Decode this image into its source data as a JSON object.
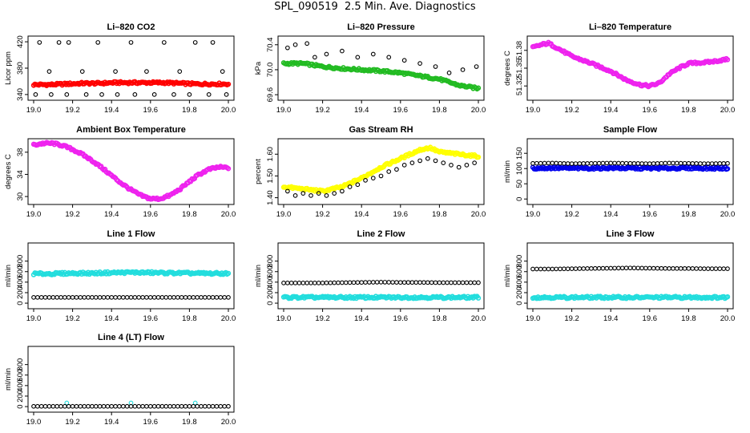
{
  "page_title": "SPL_090519  2.5 Min. Ave. Diagnostics",
  "chart_data": [
    {
      "id": "co2",
      "type": "scatter",
      "title": "Li–820 CO2",
      "xlabel": "",
      "ylabel": "Licor ppm",
      "xlim": [
        19.0,
        20.0
      ],
      "ylim": [
        335,
        425
      ],
      "xticks": [
        "19.0",
        "19.2",
        "19.4",
        "19.6",
        "19.8",
        "20.0"
      ],
      "yticks": [
        "340",
        "380",
        "420"
      ],
      "series": [
        {
          "name": "co2",
          "color": "#ff0000",
          "values": [
            355,
            355,
            356,
            357,
            357,
            358,
            358,
            358,
            358,
            357,
            356,
            356,
            356
          ]
        },
        {
          "name": "outliers",
          "color": "#000000",
          "x": [
            19.03,
            19.08,
            19.13,
            19.18,
            19.25,
            19.33,
            19.42,
            19.5,
            19.58,
            19.67,
            19.75,
            19.83,
            19.92,
            19.97
          ],
          "values": [
            419,
            375,
            419,
            419,
            375,
            419,
            375,
            419,
            375,
            419,
            375,
            419,
            419,
            375
          ]
        },
        {
          "name": "lows",
          "color": "#000000",
          "x": [
            19.01,
            19.09,
            19.17,
            19.27,
            19.35,
            19.43,
            19.52,
            19.62,
            19.72,
            19.8,
            19.9,
            19.99
          ],
          "values": [
            340,
            340,
            340,
            340,
            340,
            340,
            340,
            340,
            340,
            340,
            340,
            340
          ]
        }
      ]
    },
    {
      "id": "pressure",
      "type": "scatter",
      "title": "Li–820 Pressure",
      "xlabel": "",
      "ylabel": "kPa",
      "xlim": [
        19.0,
        20.0
      ],
      "ylim": [
        69.55,
        70.5
      ],
      "xticks": [
        "19.0",
        "19.2",
        "19.4",
        "19.6",
        "19.8",
        "20.0"
      ],
      "yticks": [
        "69.6",
        "70.0",
        "70.4"
      ],
      "series": [
        {
          "name": "pressure",
          "color": "#22bb22",
          "x": [
            19.0,
            19.1,
            19.2,
            19.3,
            19.4,
            19.5,
            19.6,
            19.7,
            19.8,
            19.9,
            20.0
          ],
          "values": [
            70.1,
            70.1,
            70.05,
            70.02,
            70.0,
            69.98,
            69.95,
            69.9,
            69.85,
            69.75,
            69.7
          ]
        },
        {
          "name": "outliers",
          "color": "#000000",
          "x": [
            19.02,
            19.06,
            19.12,
            19.16,
            19.22,
            19.3,
            19.38,
            19.46,
            19.54,
            19.62,
            19.7,
            19.78,
            19.85,
            19.92,
            19.99
          ],
          "values": [
            70.35,
            70.4,
            70.42,
            70.2,
            70.25,
            70.3,
            70.2,
            70.25,
            70.2,
            70.15,
            70.1,
            70.05,
            69.95,
            70.0,
            70.05
          ]
        }
      ]
    },
    {
      "id": "temperature",
      "type": "line",
      "title": "Li–820 Temperature",
      "xlabel": "",
      "ylabel": "degrees C",
      "xlim": [
        19.0,
        20.0
      ],
      "ylim": [
        51.3,
        51.4
      ],
      "xticks": [
        "19.0",
        "19.2",
        "19.4",
        "19.6",
        "19.8",
        "20.0"
      ],
      "yticks": [
        "51.32",
        "51.35",
        "51.38"
      ],
      "series": [
        {
          "name": "temperature",
          "color": "#ee22ee",
          "x": [
            19.0,
            19.05,
            19.08,
            19.12,
            19.2,
            19.3,
            19.4,
            19.48,
            19.55,
            19.6,
            19.65,
            19.7,
            19.75,
            19.8,
            19.9,
            20.0
          ],
          "values": [
            51.385,
            51.39,
            51.392,
            51.385,
            51.37,
            51.358,
            51.345,
            51.33,
            51.322,
            51.32,
            51.325,
            51.34,
            51.35,
            51.358,
            51.36,
            51.365
          ]
        }
      ]
    },
    {
      "id": "ambient",
      "type": "line",
      "title": "Ambient Box Temperature",
      "xlabel": "",
      "ylabel": "degrees C",
      "xlim": [
        19.0,
        20.0
      ],
      "ylim": [
        29,
        40
      ],
      "xticks": [
        "19.0",
        "19.2",
        "19.4",
        "19.6",
        "19.8",
        "20.0"
      ],
      "yticks": [
        "30",
        "34",
        "38"
      ],
      "series": [
        {
          "name": "ambient",
          "color": "#ee22ee",
          "x": [
            19.0,
            19.05,
            19.1,
            19.15,
            19.2,
            19.25,
            19.3,
            19.35,
            19.4,
            19.45,
            19.5,
            19.55,
            19.6,
            19.65,
            19.7,
            19.75,
            19.8,
            19.85,
            19.9,
            19.95,
            20.0
          ],
          "values": [
            39.3,
            39.6,
            39.6,
            39.2,
            38.5,
            37.6,
            36.5,
            35.2,
            33.8,
            32.4,
            31.2,
            30.2,
            29.6,
            29.6,
            30.2,
            31.3,
            32.7,
            34.0,
            34.9,
            35.3,
            35.2
          ]
        }
      ]
    },
    {
      "id": "rh",
      "type": "scatter",
      "title": "Gas Stream RH",
      "xlabel": "",
      "ylabel": "percent",
      "xlim": [
        19.0,
        20.0
      ],
      "ylim": [
        1.38,
        1.66
      ],
      "xticks": [
        "19.0",
        "19.2",
        "19.4",
        "19.6",
        "19.8",
        "20.0"
      ],
      "yticks": [
        "1.40",
        "1.50",
        "1.60"
      ],
      "series": [
        {
          "name": "rh",
          "color": "#ffff00",
          "x": [
            19.0,
            19.1,
            19.2,
            19.3,
            19.4,
            19.5,
            19.6,
            19.7,
            19.75,
            19.8,
            19.9,
            20.0
          ],
          "values": [
            1.45,
            1.44,
            1.43,
            1.45,
            1.49,
            1.54,
            1.58,
            1.62,
            1.63,
            1.61,
            1.6,
            1.59
          ]
        },
        {
          "name": "outliers",
          "color": "#000000",
          "x": [
            19.02,
            19.06,
            19.1,
            19.14,
            19.18,
            19.22,
            19.26,
            19.3,
            19.34,
            19.38,
            19.42,
            19.46,
            19.5,
            19.54,
            19.58,
            19.62,
            19.66,
            19.7,
            19.74,
            19.78,
            19.82,
            19.86,
            19.9,
            19.94,
            19.98
          ],
          "values": [
            1.43,
            1.41,
            1.42,
            1.41,
            1.42,
            1.41,
            1.42,
            1.43,
            1.45,
            1.46,
            1.48,
            1.49,
            1.5,
            1.52,
            1.53,
            1.55,
            1.56,
            1.57,
            1.58,
            1.57,
            1.56,
            1.55,
            1.54,
            1.55,
            1.56
          ]
        }
      ]
    },
    {
      "id": "sampleflow",
      "type": "scatter",
      "title": "Sample Flow",
      "xlabel": "",
      "ylabel": "ml/min",
      "xlim": [
        19.0,
        20.0
      ],
      "ylim": [
        -10,
        190
      ],
      "xticks": [
        "19.0",
        "19.2",
        "19.4",
        "19.6",
        "19.8",
        "20.0"
      ],
      "yticks": [
        "0",
        "50",
        "100",
        "150"
      ],
      "series": [
        {
          "name": "sample",
          "color": "#0000ee",
          "values": [
            101,
            102,
            101,
            101,
            102,
            101,
            101,
            101,
            102,
            101,
            101
          ]
        },
        {
          "name": "outliers",
          "color": "#000000",
          "values": [
            117,
            118,
            116,
            117,
            118,
            117,
            116,
            118,
            117,
            116,
            117
          ]
        }
      ]
    },
    {
      "id": "line1",
      "type": "scatter",
      "title": "Line 1 Flow",
      "xlabel": "",
      "ylabel": "ml/min",
      "xlim": [
        19.0,
        20.0
      ],
      "ylim": [
        -60,
        1100
      ],
      "xticks": [
        "19.0",
        "19.2",
        "19.4",
        "19.6",
        "19.8",
        "20.0"
      ],
      "yticks": [
        "0",
        "200",
        "400",
        "600",
        "800"
      ],
      "series": [
        {
          "name": "line1",
          "color": "#22dddd",
          "values": [
            560,
            560,
            570,
            570,
            580,
            585,
            580,
            575,
            570,
            565,
            565
          ]
        },
        {
          "name": "other",
          "color": "#000000",
          "values": [
            110,
            110,
            110,
            110,
            110,
            110,
            110,
            110,
            110,
            110,
            110
          ]
        }
      ]
    },
    {
      "id": "line2",
      "type": "scatter",
      "title": "Line 2 Flow",
      "xlabel": "",
      "ylabel": "ml/min",
      "xlim": [
        19.0,
        20.0
      ],
      "ylim": [
        -60,
        1100
      ],
      "xticks": [
        "19.0",
        "19.2",
        "19.4",
        "19.6",
        "19.8",
        "20.0"
      ],
      "yticks": [
        "0",
        "200",
        "400",
        "600",
        "800"
      ],
      "series": [
        {
          "name": "line2",
          "color": "#22dddd",
          "values": [
            110,
            110,
            110,
            110,
            110,
            110,
            110,
            110,
            110,
            110,
            110
          ]
        },
        {
          "name": "other",
          "color": "#000000",
          "values": [
            385,
            385,
            385,
            390,
            395,
            400,
            395,
            395,
            390,
            390,
            390
          ]
        }
      ]
    },
    {
      "id": "line3",
      "type": "scatter",
      "title": "Line 3 Flow",
      "xlabel": "",
      "ylabel": "ml/min",
      "xlim": [
        19.0,
        20.0
      ],
      "ylim": [
        -60,
        1100
      ],
      "xticks": [
        "19.0",
        "19.2",
        "19.4",
        "19.6",
        "19.8",
        "20.0"
      ],
      "yticks": [
        "0",
        "200",
        "400",
        "600",
        "800"
      ],
      "series": [
        {
          "name": "line3",
          "color": "#22dddd",
          "values": [
            110,
            110,
            110,
            110,
            110,
            110,
            110,
            110,
            110,
            110,
            110
          ]
        },
        {
          "name": "other",
          "color": "#000000",
          "values": [
            650,
            650,
            655,
            660,
            665,
            670,
            665,
            660,
            660,
            655,
            655
          ]
        }
      ]
    },
    {
      "id": "line4",
      "type": "scatter",
      "title": "Line 4 (LT) Flow",
      "xlabel": "",
      "ylabel": "ml/min",
      "xlim": [
        19.0,
        20.0
      ],
      "ylim": [
        -60,
        1100
      ],
      "xticks": [
        "19.0",
        "19.2",
        "19.4",
        "19.6",
        "19.8",
        "20.0"
      ],
      "yticks": [
        "0",
        "200",
        "400",
        "600",
        "800"
      ],
      "series": [
        {
          "name": "line4",
          "color": "#22dddd",
          "x": [
            19.17,
            19.5,
            19.83
          ],
          "values": [
            70,
            70,
            70
          ]
        },
        {
          "name": "other",
          "color": "#000000",
          "values": [
            5,
            5,
            5,
            5,
            5,
            5,
            5,
            5,
            5,
            5,
            5
          ]
        }
      ]
    }
  ]
}
